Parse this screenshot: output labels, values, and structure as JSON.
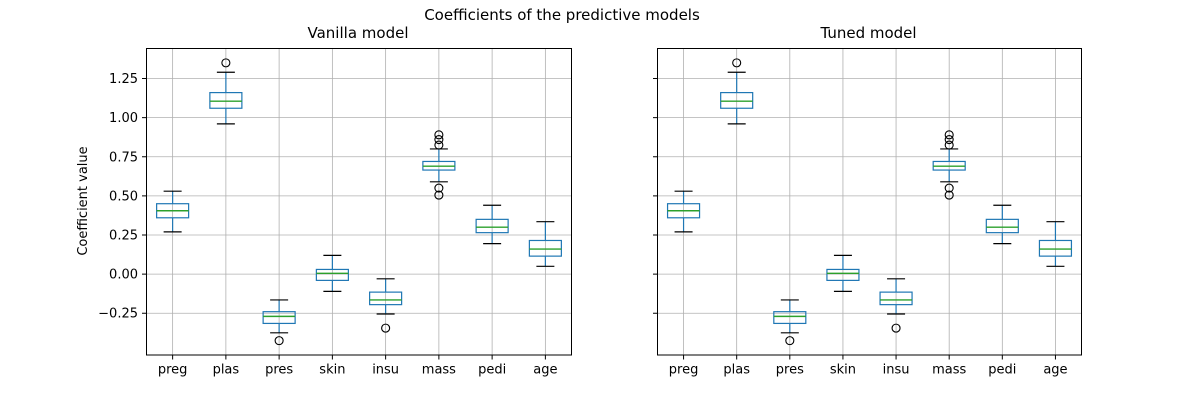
{
  "figure": {
    "suptitle": "Coefficients of the predictive models",
    "background": "#ffffff"
  },
  "chart_data": {
    "type": "boxplot",
    "title": "Coefficients of the predictive models",
    "categories": [
      "preg",
      "plas",
      "pres",
      "skin",
      "insu",
      "mass",
      "pedi",
      "age"
    ],
    "ylabel": "Coefficient value",
    "ylim": [
      -0.52,
      1.445
    ],
    "yticks": [
      1.25,
      1.0,
      0.75,
      0.5,
      0.25,
      0.0,
      -0.25
    ],
    "grid": true,
    "legend": null,
    "colors": {
      "box": "#1f77b4",
      "whisker": "#1f77b4",
      "median": "#2ca02c",
      "cap": "#000000",
      "flier": "#000000",
      "grid": "#b0b0b0",
      "frame": "#000000",
      "text": "#000000"
    },
    "panels": [
      {
        "title": "Vanilla model",
        "boxes": [
          {
            "label": "preg",
            "whislo": 0.27,
            "q1": 0.36,
            "med": 0.405,
            "q3": 0.45,
            "whishi": 0.53,
            "fliers": []
          },
          {
            "label": "plas",
            "whislo": 0.96,
            "q1": 1.06,
            "med": 1.105,
            "q3": 1.16,
            "whishi": 1.29,
            "fliers": [
              1.35
            ]
          },
          {
            "label": "pres",
            "whislo": -0.375,
            "q1": -0.315,
            "med": -0.27,
            "q3": -0.24,
            "whishi": -0.165,
            "fliers": [
              -0.425
            ]
          },
          {
            "label": "skin",
            "whislo": -0.11,
            "q1": -0.04,
            "med": 0.005,
            "q3": 0.03,
            "whishi": 0.12,
            "fliers": []
          },
          {
            "label": "insu",
            "whislo": -0.255,
            "q1": -0.195,
            "med": -0.165,
            "q3": -0.115,
            "whishi": -0.03,
            "fliers": [
              -0.345
            ]
          },
          {
            "label": "mass",
            "whislo": 0.59,
            "q1": 0.665,
            "med": 0.69,
            "q3": 0.72,
            "whishi": 0.8,
            "fliers": [
              0.89,
              0.86,
              0.825,
              0.55,
              0.505
            ]
          },
          {
            "label": "pedi",
            "whislo": 0.195,
            "q1": 0.265,
            "med": 0.3,
            "q3": 0.35,
            "whishi": 0.44,
            "fliers": []
          },
          {
            "label": "age",
            "whislo": 0.05,
            "q1": 0.115,
            "med": 0.16,
            "q3": 0.215,
            "whishi": 0.335,
            "fliers": []
          }
        ]
      },
      {
        "title": "Tuned model",
        "boxes": [
          {
            "label": "preg",
            "whislo": 0.27,
            "q1": 0.36,
            "med": 0.405,
            "q3": 0.45,
            "whishi": 0.53,
            "fliers": []
          },
          {
            "label": "plas",
            "whislo": 0.96,
            "q1": 1.06,
            "med": 1.105,
            "q3": 1.16,
            "whishi": 1.29,
            "fliers": [
              1.35
            ]
          },
          {
            "label": "pres",
            "whislo": -0.375,
            "q1": -0.315,
            "med": -0.27,
            "q3": -0.24,
            "whishi": -0.165,
            "fliers": [
              -0.425
            ]
          },
          {
            "label": "skin",
            "whislo": -0.11,
            "q1": -0.04,
            "med": 0.005,
            "q3": 0.03,
            "whishi": 0.12,
            "fliers": []
          },
          {
            "label": "insu",
            "whislo": -0.255,
            "q1": -0.195,
            "med": -0.165,
            "q3": -0.115,
            "whishi": -0.03,
            "fliers": [
              -0.345
            ]
          },
          {
            "label": "mass",
            "whislo": 0.59,
            "q1": 0.665,
            "med": 0.69,
            "q3": 0.72,
            "whishi": 0.8,
            "fliers": [
              0.89,
              0.86,
              0.825,
              0.55,
              0.505
            ]
          },
          {
            "label": "pedi",
            "whislo": 0.195,
            "q1": 0.265,
            "med": 0.3,
            "q3": 0.35,
            "whishi": 0.44,
            "fliers": []
          },
          {
            "label": "age",
            "whislo": 0.05,
            "q1": 0.115,
            "med": 0.16,
            "q3": 0.215,
            "whishi": 0.335,
            "fliers": []
          }
        ]
      }
    ]
  }
}
